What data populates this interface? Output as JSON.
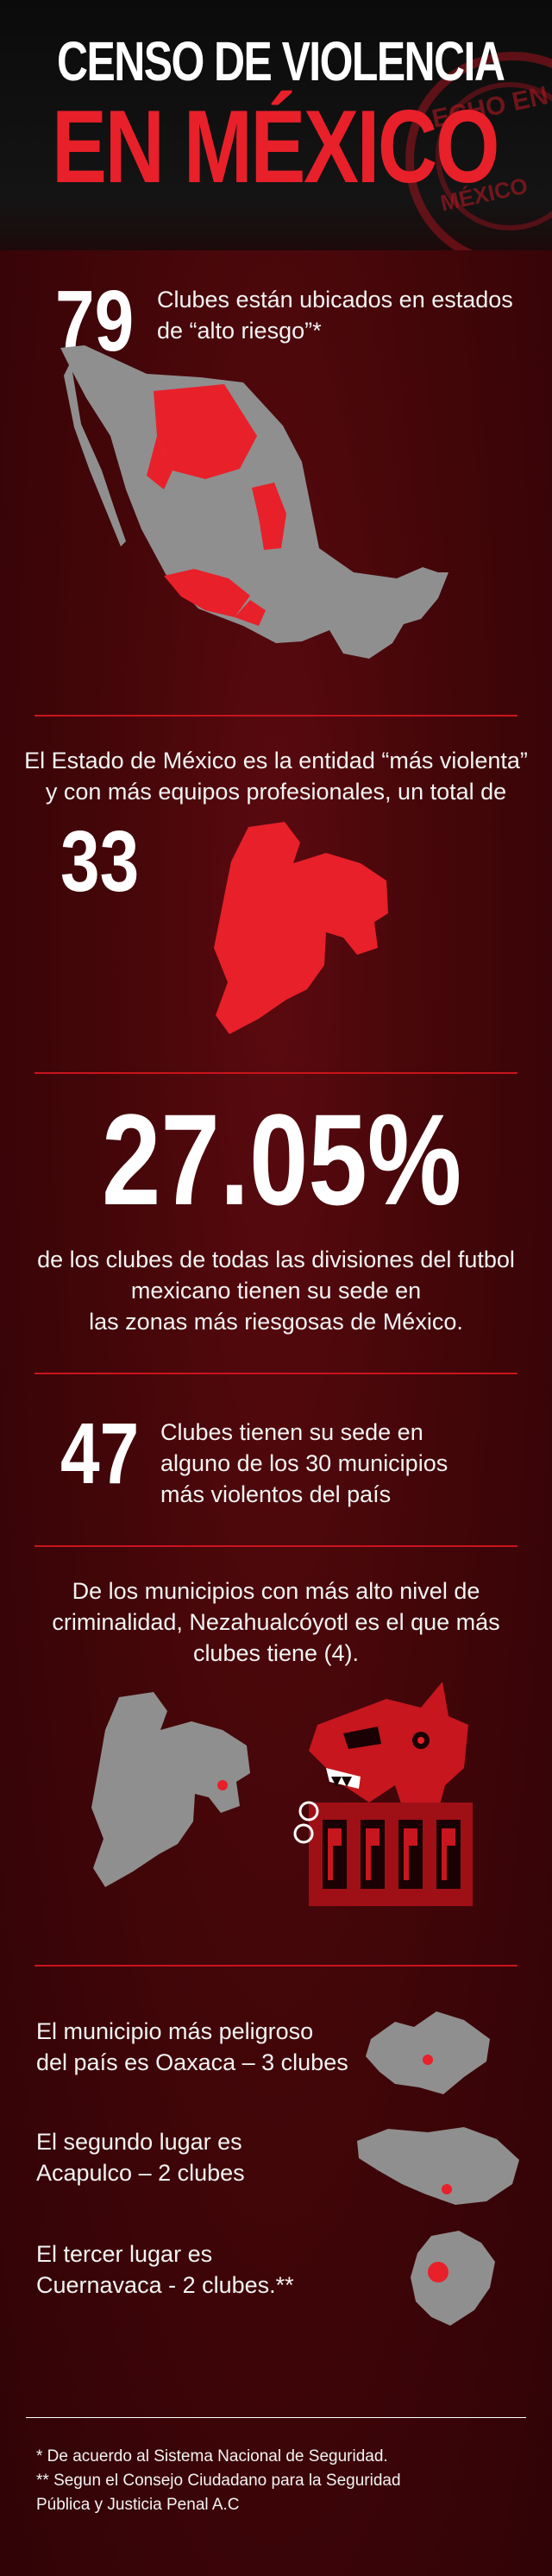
{
  "header": {
    "title_line1": "CENSO DE VIOLENCIA",
    "title_line2": "EN MÉXICO",
    "stamp_line1": "ECHO EN",
    "stamp_line2": "MÉXICO"
  },
  "section1": {
    "number": "79",
    "text_line1": "Clubes están ubicados en estados",
    "text_line2": "de “alto riesgo”*"
  },
  "section2": {
    "text_line1": "El Estado de México es la entidad “más violenta”",
    "text_line2": "y con más equipos profesionales, un total de",
    "number": "33"
  },
  "section3": {
    "number": "27.05%",
    "text_line1": "de los clubes de todas las divisiones del futbol",
    "text_line2": "mexicano tienen su sede en",
    "text_line3": "las zonas más riesgosas de México."
  },
  "section4": {
    "number": "47",
    "text_line1": "Clubes tienen su sede en",
    "text_line2": "alguno de los 30 municipios",
    "text_line3": "más violentos del país"
  },
  "section5": {
    "text_line1": "De los municipios con más alto nivel de",
    "text_line2": "criminalidad, Nezahualcóyotl es el que más",
    "text_line3": "clubes tiene (4)."
  },
  "section6": {
    "item1_line1": "El municipio más peligroso",
    "item1_line2": "del país es Oaxaca – 3 clubes",
    "item2_line1": "El segundo lugar es",
    "item2_line2": "Acapulco – 2 clubes",
    "item3_line1": "El tercer lugar es",
    "item3_line2": "Cuernavaca - 2 clubes.**"
  },
  "footnotes": {
    "note1": "* De acuerdo al Sistema Nacional de Seguridad.",
    "note2": "** Segun el Consejo Ciudadano para la Seguridad",
    "note3": "Pública y Justicia Penal A.C"
  },
  "colors": {
    "accent_red": "#e8202a",
    "map_gray": "#8f8f8f",
    "background": "#3b0508"
  }
}
